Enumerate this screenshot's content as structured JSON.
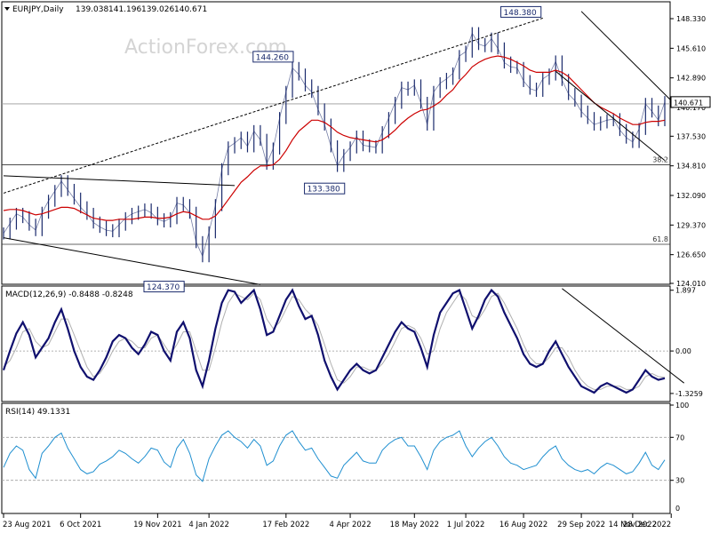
{
  "watermark": "ActionForex.com",
  "chart_data": [
    {
      "type": "line",
      "title": "EURJPY,Daily",
      "ohlc": {
        "open": "139.038",
        "high": "141.196",
        "low": "139.026",
        "close": "140.671"
      },
      "ylim": [
        124.01,
        149.8
      ],
      "y_ticks": [
        "148.330",
        "145.610",
        "142.890",
        "140.170",
        "137.530",
        "134.810",
        "132.090",
        "129.370",
        "126.650",
        "124.010"
      ],
      "last_price": "140.671",
      "price_annotations": [
        {
          "label": "148.380",
          "x": 84,
          "y": 148.38
        },
        {
          "label": "144.260",
          "x": 42,
          "y": 144.26
        },
        {
          "label": "133.380",
          "x": 50,
          "y": 133.38
        },
        {
          "label": "124.370",
          "x": 25,
          "y": 124.37
        }
      ],
      "fibonacci": [
        {
          "label": "38.2",
          "y": 134.9
        },
        {
          "label": "61.8",
          "y": 127.6
        }
      ],
      "horizontal_levels": [
        140.5
      ],
      "trendlines": [
        {
          "style": "dashed",
          "x": [
            0,
            84
          ],
          "y": [
            132.3,
            148.38
          ]
        },
        {
          "style": "solid",
          "x": [
            0,
            36
          ],
          "y": [
            133.9,
            133.0
          ]
        },
        {
          "style": "solid",
          "x": [
            0,
            40
          ],
          "y": [
            128.2,
            123.9
          ]
        },
        {
          "style": "solid",
          "x": [
            90,
            104
          ],
          "y": [
            149.0,
            140.8
          ]
        },
        {
          "style": "solid",
          "x": [
            86,
            103
          ],
          "y": [
            143.5,
            135.3
          ]
        }
      ],
      "series": [
        {
          "name": "",
          "color": "#1a2a6c",
          "values": [
            128.6,
            129.5,
            130.4,
            130.1,
            129.4,
            128.9,
            130.5,
            131.6,
            132.5,
            133.4,
            132.6,
            131.8,
            131.0,
            130.4,
            129.6,
            129.2,
            128.9,
            128.8,
            129.4,
            130.0,
            130.4,
            130.6,
            130.8,
            130.5,
            129.9,
            129.7,
            130.0,
            131.4,
            131.2,
            130.5,
            127.8,
            126.5,
            128.7,
            131.2,
            134.5,
            136.5,
            136.9,
            137.4,
            136.6,
            138.0,
            137.2,
            135.0,
            136.4,
            139.2,
            141.6,
            143.8,
            143.2,
            142.2,
            141.6,
            140.0,
            138.6,
            136.6,
            134.8,
            135.8,
            136.5,
            137.5,
            136.7,
            136.6,
            136.5,
            137.9,
            139.2,
            140.6,
            142.0,
            141.8,
            142.2,
            140.6,
            138.6,
            141.6,
            142.4,
            142.8,
            143.3,
            144.9,
            145.3,
            147.0,
            146.0,
            145.8,
            146.5,
            145.6,
            144.3,
            143.9,
            143.8,
            142.6,
            141.9,
            141.7,
            142.8,
            143.2,
            144.4,
            142.7,
            141.4,
            140.8,
            139.8,
            139.2,
            138.6,
            138.8,
            139.0,
            139.1,
            138.1,
            137.4,
            137.0,
            138.2,
            140.5,
            139.8,
            139.0,
            140.67
          ]
        },
        {
          "name": "",
          "color": "#cc0000",
          "values": [
            130.7,
            130.8,
            130.8,
            130.7,
            130.5,
            130.3,
            130.4,
            130.6,
            130.8,
            131.0,
            131.0,
            130.9,
            130.6,
            130.3,
            130.0,
            129.9,
            129.8,
            129.8,
            129.9,
            129.9,
            129.9,
            130.0,
            130.1,
            130.1,
            130.0,
            130.0,
            130.1,
            130.4,
            130.6,
            130.5,
            130.2,
            129.9,
            129.9,
            130.2,
            130.9,
            131.7,
            132.5,
            133.3,
            133.8,
            134.4,
            134.8,
            134.8,
            134.9,
            135.4,
            136.2,
            137.2,
            138.0,
            138.5,
            139.0,
            139.0,
            138.8,
            138.4,
            137.9,
            137.6,
            137.4,
            137.3,
            137.2,
            137.1,
            137.0,
            137.2,
            137.6,
            138.1,
            138.7,
            139.2,
            139.6,
            139.9,
            140.0,
            140.3,
            140.7,
            141.3,
            141.8,
            142.6,
            143.2,
            143.9,
            144.3,
            144.6,
            144.8,
            144.9,
            144.8,
            144.6,
            144.3,
            144.0,
            143.6,
            143.4,
            143.4,
            143.4,
            143.6,
            143.4,
            143.0,
            142.4,
            141.8,
            141.2,
            140.6,
            140.2,
            139.9,
            139.6,
            139.2,
            138.9,
            138.6,
            138.6,
            138.8,
            138.9,
            138.9,
            139.0
          ]
        }
      ]
    },
    {
      "type": "line",
      "title": "MACD(12,26,9) -0.8488 -0.8248",
      "ylim": [
        -1.55,
        2.0
      ],
      "y_ticks": [
        "1.897",
        "0.00",
        "-1.3259"
      ],
      "zero_line": 0,
      "trendlines": [
        {
          "style": "solid",
          "x": [
            87,
            106
          ],
          "y": [
            1.95,
            -1.0
          ]
        }
      ],
      "series": [
        {
          "name": "",
          "color": "#10106e",
          "values": [
            -0.6,
            0.0,
            0.55,
            0.9,
            0.5,
            -0.2,
            0.1,
            0.4,
            0.9,
            1.3,
            0.7,
            0.0,
            -0.5,
            -0.8,
            -0.9,
            -0.6,
            -0.2,
            0.3,
            0.5,
            0.4,
            0.1,
            -0.1,
            0.2,
            0.6,
            0.5,
            0.0,
            -0.3,
            0.6,
            0.9,
            0.4,
            -0.6,
            -1.1,
            -0.3,
            0.7,
            1.5,
            1.9,
            1.85,
            1.5,
            1.7,
            1.9,
            1.3,
            0.5,
            0.6,
            1.1,
            1.6,
            1.9,
            1.4,
            1.0,
            1.1,
            0.5,
            -0.3,
            -0.8,
            -1.2,
            -0.9,
            -0.6,
            -0.4,
            -0.6,
            -0.7,
            -0.6,
            -0.2,
            0.2,
            0.6,
            0.9,
            0.7,
            0.6,
            0.1,
            -0.5,
            0.5,
            1.2,
            1.5,
            1.8,
            1.9,
            1.3,
            0.7,
            1.1,
            1.6,
            1.9,
            1.7,
            1.2,
            0.8,
            0.4,
            -0.1,
            -0.4,
            -0.5,
            -0.4,
            0.0,
            0.3,
            -0.1,
            -0.5,
            -0.8,
            -1.1,
            -1.2,
            -1.3,
            -1.1,
            -1.0,
            -1.1,
            -1.2,
            -1.3,
            -1.2,
            -0.9,
            -0.6,
            -0.8,
            -0.9,
            -0.85
          ]
        },
        {
          "name": "",
          "color": "#b0b0b0",
          "values": [
            -0.5,
            -0.3,
            0.1,
            0.6,
            0.7,
            0.3,
            0.1,
            0.2,
            0.6,
            1.0,
            1.0,
            0.5,
            0.0,
            -0.5,
            -0.8,
            -0.7,
            -0.4,
            0.0,
            0.3,
            0.4,
            0.3,
            0.1,
            0.1,
            0.4,
            0.5,
            0.2,
            -0.1,
            0.2,
            0.6,
            0.6,
            0.0,
            -0.6,
            -0.6,
            0.1,
            0.9,
            1.5,
            1.8,
            1.7,
            1.6,
            1.8,
            1.6,
            1.0,
            0.7,
            0.9,
            1.3,
            1.7,
            1.6,
            1.3,
            1.1,
            0.8,
            0.2,
            -0.4,
            -0.9,
            -1.0,
            -0.8,
            -0.5,
            -0.5,
            -0.6,
            -0.6,
            -0.4,
            -0.1,
            0.3,
            0.7,
            0.8,
            0.7,
            0.4,
            -0.1,
            0.0,
            0.7,
            1.2,
            1.5,
            1.8,
            1.6,
            1.1,
            1.0,
            1.3,
            1.7,
            1.8,
            1.5,
            1.1,
            0.7,
            0.2,
            -0.2,
            -0.4,
            -0.4,
            -0.2,
            0.1,
            0.1,
            -0.2,
            -0.6,
            -0.9,
            -1.1,
            -1.2,
            -1.2,
            -1.1,
            -1.1,
            -1.1,
            -1.2,
            -1.2,
            -1.1,
            -0.8,
            -0.7,
            -0.8,
            -0.82
          ]
        }
      ]
    },
    {
      "type": "line",
      "title": "RSI(14) 49.1331",
      "ylim": [
        0,
        100
      ],
      "y_ticks": [
        "100",
        "70",
        "30",
        "0"
      ],
      "levels": [
        70,
        30
      ],
      "series": [
        {
          "name": "",
          "color": "#1f8fd0",
          "values": [
            42,
            55,
            62,
            58,
            40,
            32,
            55,
            62,
            70,
            74,
            60,
            50,
            40,
            36,
            38,
            45,
            48,
            52,
            58,
            55,
            50,
            46,
            52,
            60,
            58,
            47,
            42,
            60,
            68,
            55,
            35,
            29,
            50,
            62,
            72,
            76,
            70,
            66,
            60,
            68,
            62,
            44,
            48,
            62,
            72,
            76,
            66,
            58,
            60,
            50,
            42,
            34,
            32,
            44,
            50,
            56,
            48,
            46,
            46,
            58,
            64,
            68,
            70,
            62,
            62,
            52,
            40,
            58,
            66,
            70,
            72,
            76,
            62,
            52,
            60,
            66,
            70,
            62,
            52,
            46,
            44,
            40,
            42,
            44,
            52,
            58,
            62,
            50,
            44,
            40,
            38,
            40,
            36,
            42,
            46,
            44,
            40,
            36,
            38,
            46,
            56,
            44,
            40,
            49
          ]
        }
      ]
    }
  ],
  "x_axis": {
    "labels": [
      {
        "label": "23 Aug 2021",
        "x": 0
      },
      {
        "label": "6 Oct 2021",
        "x": 12
      },
      {
        "label": "19 Nov 2021",
        "x": 24
      },
      {
        "label": "4 Jan 2022",
        "x": 32
      },
      {
        "label": "17 Feb 2022",
        "x": 44
      },
      {
        "label": "4 Apr 2022",
        "x": 54
      },
      {
        "label": "18 May 2022",
        "x": 64
      },
      {
        "label": "1 Jul 2022",
        "x": 72
      },
      {
        "label": "16 Aug 2022",
        "x": 81
      },
      {
        "label": "29 Sep 2022",
        "x": 90
      },
      {
        "label": "14 Nov 2022",
        "x": 98
      },
      {
        "label": "28 Dec 2022",
        "x": 104
      }
    ]
  }
}
